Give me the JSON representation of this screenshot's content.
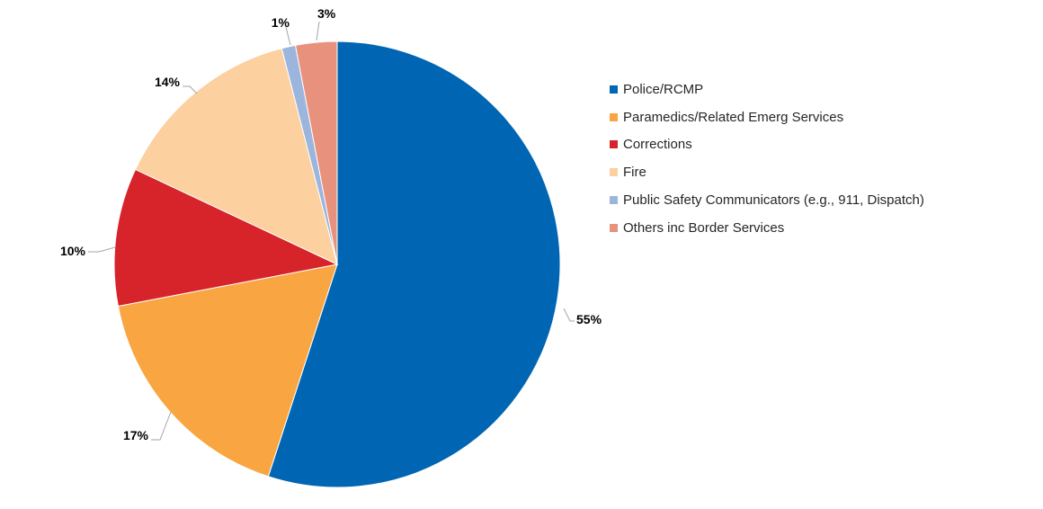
{
  "chart_data": {
    "type": "pie",
    "title": "",
    "slices": [
      {
        "label": "Police/RCMP",
        "value": 55,
        "display": "55%",
        "color": "#0066b3"
      },
      {
        "label": "Paramedics/Related Emerg Services",
        "value": 17,
        "display": "17%",
        "color": "#f9a541"
      },
      {
        "label": "Corrections",
        "value": 10,
        "display": "10%",
        "color": "#d7242b"
      },
      {
        "label": "Fire",
        "value": 14,
        "display": "14%",
        "color": "#fcd09f"
      },
      {
        "label": "Public Safety Communicators (e.g., 911, Dispatch)",
        "value": 1,
        "display": "1%",
        "color": "#9bb5dc"
      },
      {
        "label": "Others inc Border Services",
        "value": 3,
        "display": "3%",
        "color": "#e8917d"
      }
    ],
    "legend_position": "right"
  }
}
